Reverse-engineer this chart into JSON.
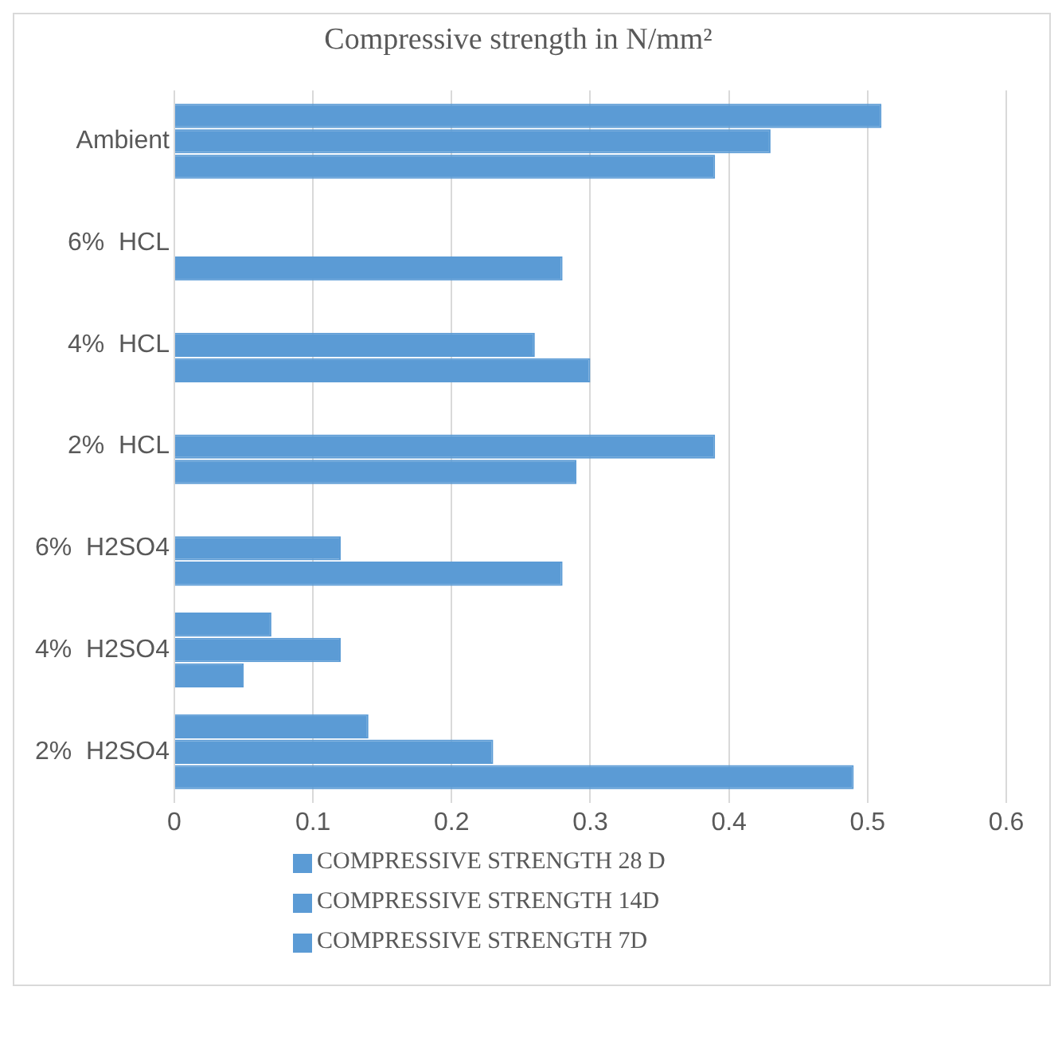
{
  "chart_data": {
    "type": "bar",
    "orientation": "horizontal",
    "title": "Compressive strength in N/mm²",
    "categories": [
      "Ambient",
      "6%  HCL",
      "4%  HCL",
      "2%  HCL",
      "6%  H2SO4",
      "4%  H2SO4",
      "2%  H2SO4"
    ],
    "series": [
      {
        "name": "COMPRESSIVE STRENGTH 28 D",
        "color": "#5b9bd5",
        "values": [
          0.51,
          null,
          null,
          null,
          null,
          0.07,
          0.14
        ]
      },
      {
        "name": "COMPRESSIVE STRENGTH 14D",
        "color": "#5b9bd5",
        "values": [
          0.43,
          null,
          0.26,
          0.39,
          0.12,
          0.12,
          0.23
        ]
      },
      {
        "name": "COMPRESSIVE STRENGTH 7D",
        "color": "#5b9bd5",
        "values": [
          0.39,
          0.28,
          0.3,
          0.29,
          0.28,
          0.05,
          0.49
        ]
      }
    ],
    "xlim": [
      0,
      0.6
    ],
    "xticks": [
      0,
      0.1,
      0.2,
      0.3,
      0.4,
      0.5,
      0.6
    ],
    "grid": "x",
    "legend": "bottom"
  }
}
